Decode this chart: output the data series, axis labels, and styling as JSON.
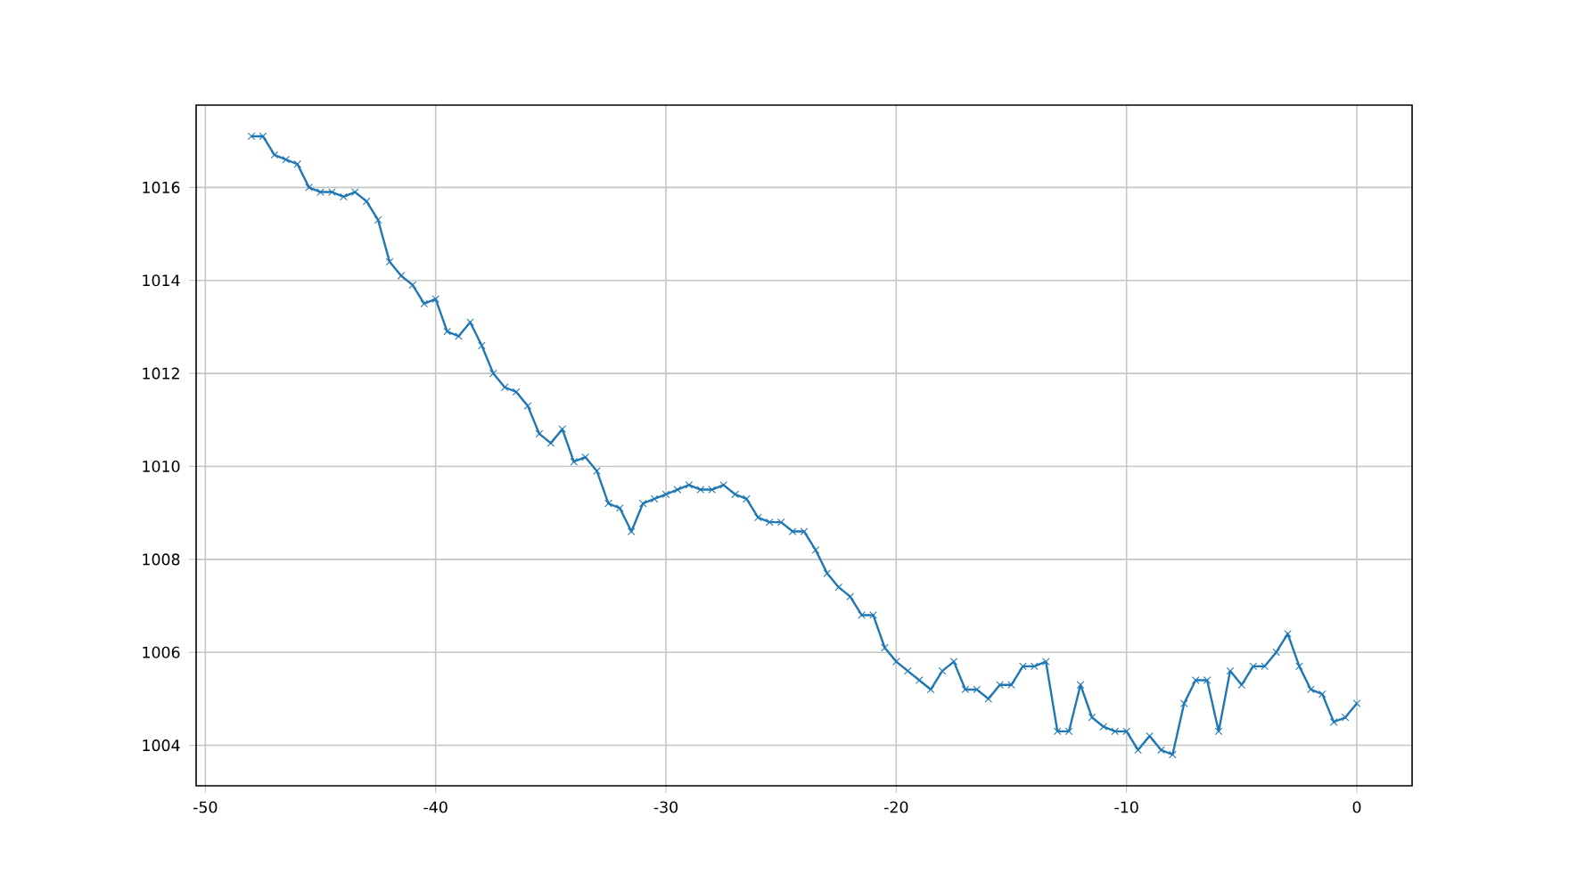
{
  "chart_data": {
    "type": "line",
    "color": "#1f77b4",
    "marker": "cross",
    "grid": true,
    "x": [
      -48,
      -47.5,
      -47,
      -46.5,
      -46,
      -45.5,
      -45,
      -44.5,
      -44,
      -43.5,
      -43,
      -42.5,
      -42,
      -41.5,
      -41,
      -40.5,
      -40,
      -39.5,
      -39,
      -38.5,
      -38,
      -37.5,
      -37,
      -36.5,
      -36,
      -35.5,
      -35,
      -34.5,
      -34,
      -33.5,
      -33,
      -32.5,
      -32,
      -31.5,
      -31,
      -30.5,
      -30,
      -29.5,
      -29,
      -28.5,
      -28,
      -27.5,
      -27,
      -26.5,
      -26,
      -25.5,
      -25,
      -24.5,
      -24,
      -23.5,
      -23,
      -22.5,
      -22,
      -21.5,
      -21,
      -20.5,
      -20,
      -19.5,
      -19,
      -18.5,
      -18,
      -17.5,
      -17,
      -16.5,
      -16,
      -15.5,
      -15,
      -14.5,
      -14,
      -13.5,
      -13,
      -12.5,
      -12,
      -11.5,
      -11,
      -10.5,
      -10,
      -9.5,
      -9,
      -8.5,
      -8,
      -7.5,
      -7,
      -6.5,
      -6,
      -5.5,
      -5,
      -4.5,
      -4,
      -3.5,
      -3,
      -2.5,
      -2,
      -1.5,
      -1,
      -0.5,
      0
    ],
    "values": [
      1017.1,
      1017.1,
      1016.7,
      1016.6,
      1016.5,
      1016.0,
      1015.9,
      1015.9,
      1015.8,
      1015.9,
      1015.7,
      1015.3,
      1014.4,
      1014.1,
      1013.9,
      1013.5,
      1013.6,
      1012.9,
      1012.8,
      1013.1,
      1012.6,
      1012.0,
      1011.7,
      1011.6,
      1011.3,
      1010.7,
      1010.5,
      1010.8,
      1010.1,
      1010.2,
      1009.9,
      1009.2,
      1009.1,
      1008.6,
      1009.2,
      1009.3,
      1009.4,
      1009.5,
      1009.6,
      1009.5,
      1009.5,
      1009.6,
      1009.4,
      1009.3,
      1008.9,
      1008.8,
      1008.8,
      1008.6,
      1008.6,
      1008.2,
      1007.7,
      1007.4,
      1007.2,
      1006.8,
      1006.8,
      1006.1,
      1005.8,
      1005.6,
      1005.4,
      1005.2,
      1005.6,
      1005.8,
      1005.2,
      1005.2,
      1005.0,
      1005.3,
      1005.3,
      1005.7,
      1005.7,
      1005.8,
      1004.3,
      1004.3,
      1005.3,
      1004.6,
      1004.4,
      1004.3,
      1004.3,
      1003.9,
      1004.2,
      1003.9,
      1003.8,
      1004.9,
      1005.4,
      1005.4,
      1004.3,
      1005.6,
      1005.3,
      1005.7,
      1005.7,
      1006.0,
      1006.4,
      1005.7,
      1005.2,
      1005.1,
      1004.5,
      1004.6,
      1004.9
    ],
    "xlim": [
      -50.4,
      2.4
    ],
    "ylim": [
      1003.13,
      1017.77
    ],
    "xticks": [
      -50,
      -40,
      -30,
      -20,
      -10,
      0
    ],
    "yticks": [
      1004,
      1006,
      1008,
      1010,
      1012,
      1014,
      1016
    ]
  }
}
